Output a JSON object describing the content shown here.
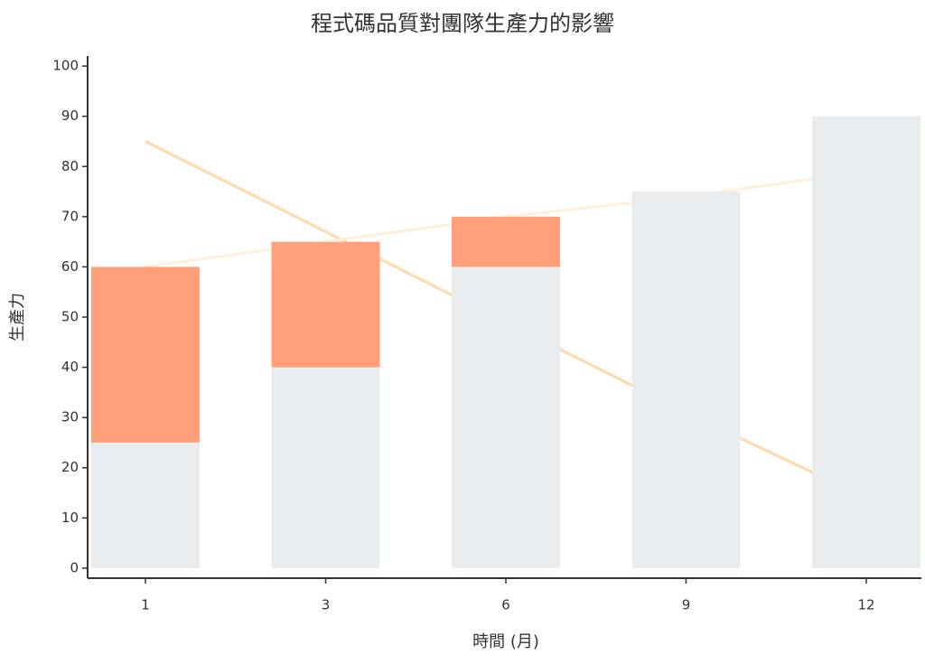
{
  "chart_data": {
    "type": "bar",
    "title": "程式碼品質對團隊生產力的影響",
    "x_label": "時間 (月)",
    "y_label": "生產力",
    "categories": [
      "1",
      "3",
      "6",
      "9",
      "12"
    ],
    "series": [
      {
        "color": "#e9ecef",
        "values": [
          25,
          40,
          60,
          75,
          90
        ],
        "stack": true
      },
      {
        "color": "#ffa07a",
        "values": [
          35,
          25,
          10,
          0,
          0
        ],
        "stack": true
      },
      {
        "color": "#ffd9ad",
        "values": [
          85,
          67,
          49,
          31,
          14
        ],
        "line": true
      },
      {
        "color": "#fff1d9",
        "values": [
          60,
          65,
          70,
          74,
          79
        ],
        "line": true
      }
    ],
    "ylim": [
      -2,
      102
    ],
    "yticks": [
      0,
      10,
      20,
      30,
      40,
      50,
      60,
      70,
      80,
      90,
      100
    ]
  }
}
